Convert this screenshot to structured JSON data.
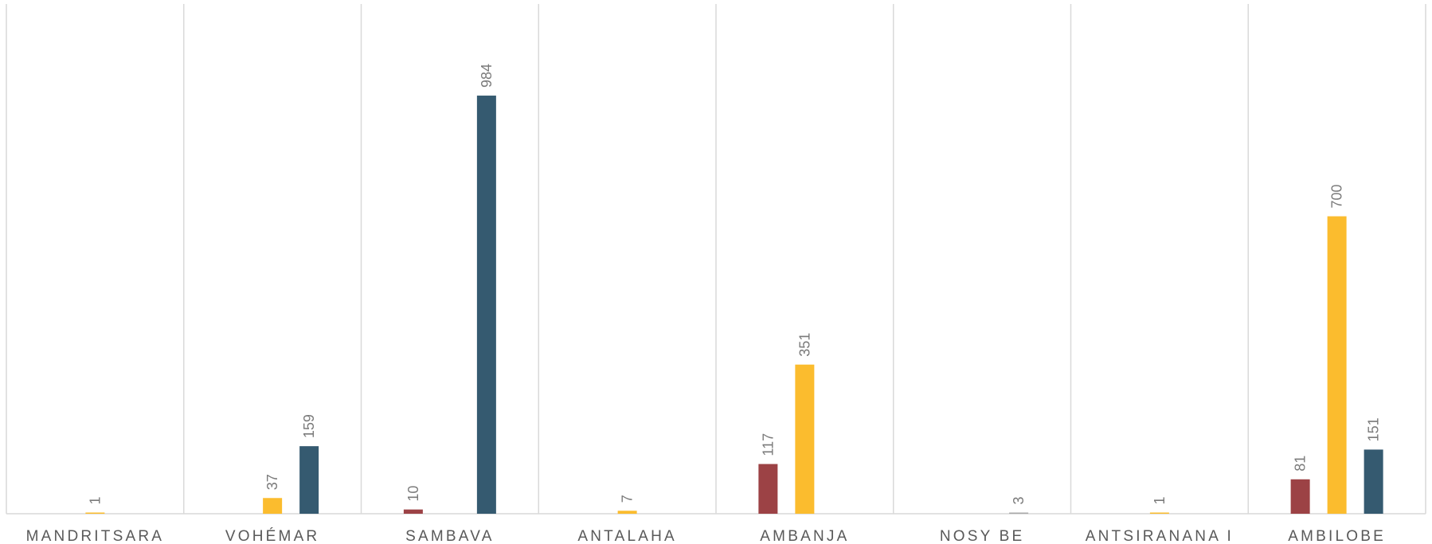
{
  "chart_data": {
    "type": "bar",
    "title": "",
    "xlabel": "",
    "ylabel": "",
    "ylim": [
      0,
      1100
    ],
    "grid": "vertical separators between categories",
    "legend": "none",
    "categories": [
      "MANDRITSARA",
      "VOHÉMAR",
      "SAMBAVA",
      "ANTALAHA",
      "AMBANJA",
      "NOSY BE",
      "ANTSIRANANA I",
      "AMBILOBE"
    ],
    "series": [
      {
        "color": "#9c4245",
        "values": [
          null,
          null,
          10,
          null,
          117,
          null,
          null,
          81
        ]
      },
      {
        "color": "#fbbc2e",
        "values": [
          1,
          37,
          null,
          7,
          351,
          null,
          1,
          700
        ]
      },
      {
        "color": "#355a70",
        "values": [
          null,
          159,
          984,
          null,
          null,
          3,
          null,
          151
        ]
      }
    ],
    "special_colors": {
      "tiny_value_bar": "#a8a8a8"
    }
  }
}
